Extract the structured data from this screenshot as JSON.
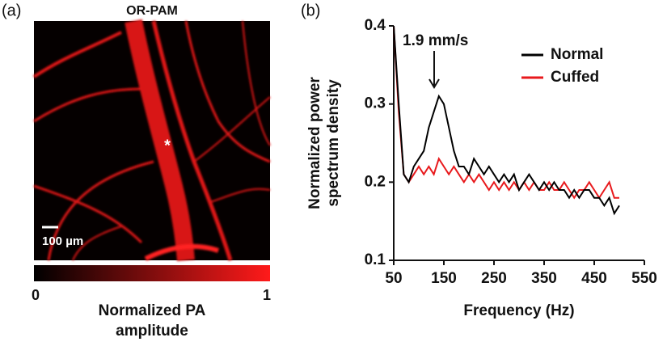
{
  "panel_a": {
    "label": "(a)",
    "title": "OR-PAM",
    "marker": "*",
    "scale_bar": "100 µm",
    "colorbar": {
      "ticks": [
        0,
        1
      ],
      "label": [
        "Normalized PA",
        "amplitude"
      ]
    }
  },
  "chart_data": {
    "type": "line",
    "panel_label": "(b)",
    "xlabel": "Frequency (Hz)",
    "ylabel": [
      "Normalized power",
      "spectrum density"
    ],
    "annotation": "1.9 mm/s",
    "x": [
      50,
      60,
      70,
      80,
      90,
      100,
      110,
      120,
      130,
      140,
      150,
      160,
      170,
      180,
      190,
      200,
      210,
      220,
      230,
      240,
      250,
      260,
      270,
      280,
      290,
      300,
      310,
      320,
      330,
      340,
      350,
      360,
      370,
      380,
      390,
      400,
      410,
      420,
      430,
      440,
      450,
      460,
      470,
      480,
      490,
      500
    ],
    "series": [
      {
        "name": "Normal",
        "color": "#000000",
        "values": [
          0.4,
          0.3,
          0.21,
          0.2,
          0.22,
          0.23,
          0.24,
          0.27,
          0.29,
          0.31,
          0.3,
          0.27,
          0.24,
          0.22,
          0.22,
          0.21,
          0.23,
          0.22,
          0.21,
          0.22,
          0.21,
          0.2,
          0.21,
          0.2,
          0.21,
          0.19,
          0.2,
          0.21,
          0.2,
          0.19,
          0.2,
          0.19,
          0.2,
          0.19,
          0.19,
          0.18,
          0.19,
          0.18,
          0.19,
          0.19,
          0.18,
          0.18,
          0.17,
          0.18,
          0.16,
          0.17
        ]
      },
      {
        "name": "Cuffed",
        "color": "#e8191c",
        "values": [
          0.4,
          0.29,
          0.21,
          0.2,
          0.21,
          0.22,
          0.21,
          0.22,
          0.21,
          0.23,
          0.22,
          0.21,
          0.22,
          0.21,
          0.2,
          0.21,
          0.2,
          0.21,
          0.2,
          0.19,
          0.2,
          0.19,
          0.2,
          0.19,
          0.2,
          0.19,
          0.2,
          0.19,
          0.2,
          0.19,
          0.19,
          0.2,
          0.19,
          0.19,
          0.2,
          0.19,
          0.18,
          0.19,
          0.19,
          0.2,
          0.19,
          0.18,
          0.19,
          0.2,
          0.18,
          0.18
        ]
      }
    ],
    "xlim": [
      50,
      550
    ],
    "xticks": [
      50,
      150,
      250,
      350,
      450,
      550
    ],
    "ylim": [
      0.1,
      0.4
    ],
    "yticks": [
      0.1,
      0.2,
      0.3,
      0.4
    ],
    "legend": "upper right"
  }
}
